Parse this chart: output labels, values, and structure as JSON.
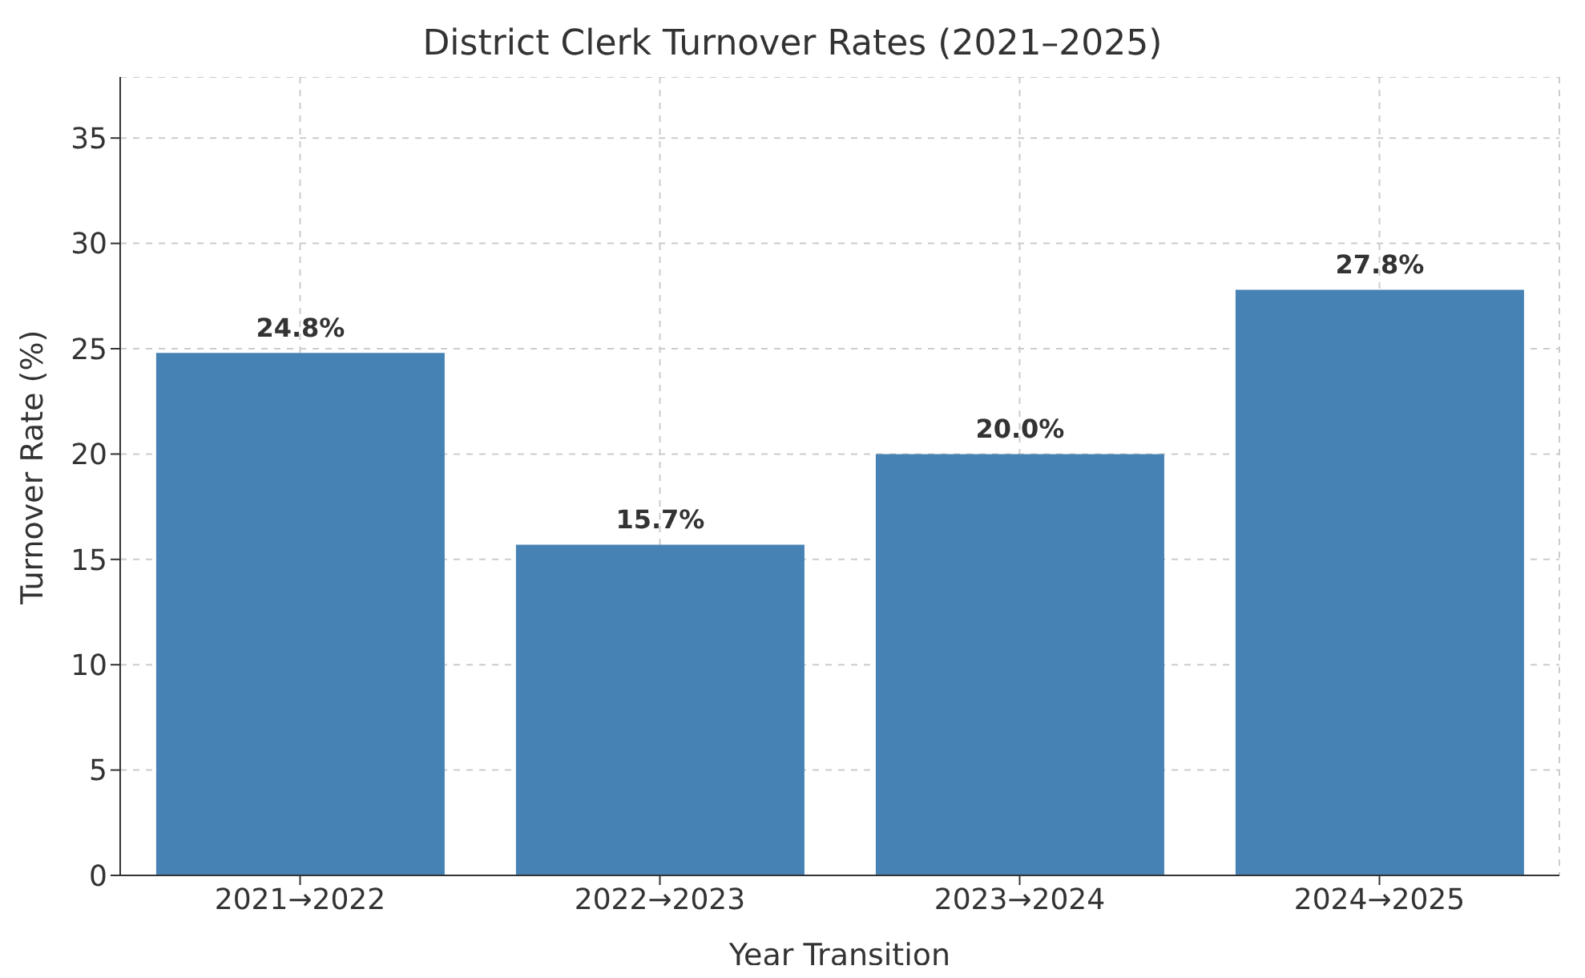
{
  "chart_data": {
    "type": "bar",
    "title": "District Clerk Turnover Rates (2021–2025)",
    "xlabel": "Year Transition",
    "ylabel": "Turnover Rate (%)",
    "categories": [
      "2021→2022",
      "2022→2023",
      "2023→2024",
      "2024→2025"
    ],
    "values": [
      24.8,
      15.7,
      20.0,
      27.8
    ],
    "value_labels": [
      "24.8%",
      "15.7%",
      "20.0%",
      "27.8%"
    ],
    "color": "#4682b4",
    "ylim": [
      0,
      37.9
    ],
    "yticks": [
      0,
      5,
      10,
      15,
      20,
      25,
      30,
      35
    ],
    "grid": true
  }
}
